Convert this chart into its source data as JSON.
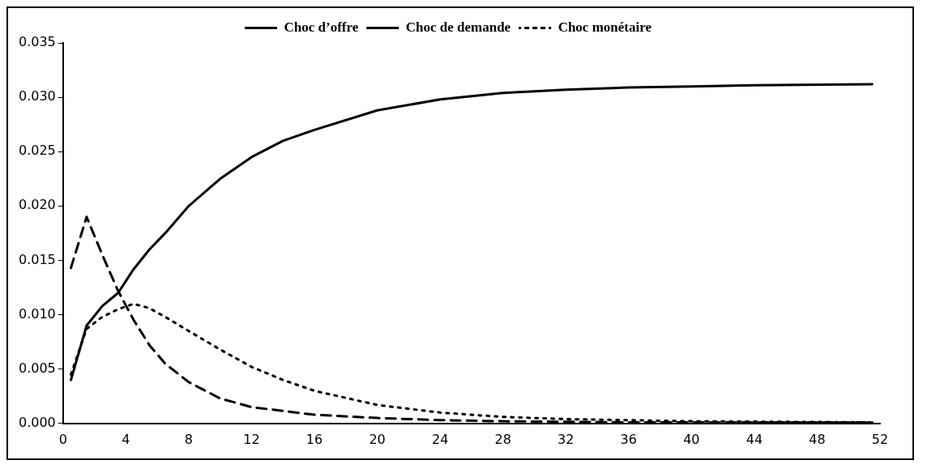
{
  "chart_data": {
    "type": "line",
    "legend": "top",
    "grid": false,
    "marker": "none",
    "xlim": [
      0,
      52
    ],
    "xticks": [
      0,
      4,
      8,
      12,
      16,
      20,
      24,
      28,
      32,
      36,
      40,
      44,
      48,
      52
    ],
    "ylim": [
      0,
      0.035
    ],
    "yticks": [
      {
        "value": 0,
        "label": "0.000"
      },
      {
        "value": 0.005,
        "label": "0.005"
      },
      {
        "value": 0.01,
        "label": "0.010"
      },
      {
        "value": 0.015,
        "label": "0.015"
      },
      {
        "value": 0.02,
        "label": "0.020"
      },
      {
        "value": 0.025,
        "label": "0.025"
      },
      {
        "value": 0.03,
        "label": "0.030"
      },
      {
        "value": 0.035,
        "label": "0.035"
      }
    ],
    "series": [
      {
        "name": "Choc d’offre",
        "color": "#000000",
        "line_style": "solid",
        "x": [
          0.5,
          1.5,
          2.5,
          3.5,
          4.5,
          5.5,
          6.5,
          8,
          10,
          12,
          14,
          16,
          20,
          24,
          28,
          32,
          36,
          40,
          44,
          51.5
        ],
        "values": [
          0.004,
          0.009,
          0.0108,
          0.012,
          0.0142,
          0.016,
          0.0175,
          0.02,
          0.0225,
          0.0245,
          0.026,
          0.027,
          0.0288,
          0.0298,
          0.0304,
          0.0307,
          0.0309,
          0.031,
          0.0311,
          0.0312
        ]
      },
      {
        "name": "Choc de demande",
        "color": "#000000",
        "line_style": "dashed",
        "x": [
          0.5,
          1.5,
          2.5,
          3.5,
          4.5,
          5.5,
          6.5,
          8,
          10,
          12,
          16,
          20,
          24,
          28,
          36,
          51.5
        ],
        "values": [
          0.0143,
          0.019,
          0.0155,
          0.0122,
          0.0095,
          0.0072,
          0.0055,
          0.0038,
          0.0023,
          0.0015,
          0.0008,
          0.0005,
          0.0003,
          0.0002,
          0.0001,
          0.0001
        ]
      },
      {
        "name": "Choc monétaire",
        "color": "#000000",
        "line_style": "dotted",
        "x": [
          0.5,
          1.5,
          2.5,
          3.5,
          4.5,
          5.5,
          6.5,
          8,
          10,
          12,
          14,
          16,
          20,
          24,
          28,
          32,
          40,
          51.5
        ],
        "values": [
          0.0045,
          0.0087,
          0.0098,
          0.0105,
          0.011,
          0.0106,
          0.0098,
          0.0085,
          0.0068,
          0.0052,
          0.004,
          0.003,
          0.0017,
          0.001,
          0.0006,
          0.0004,
          0.0002,
          0.0001
        ]
      }
    ]
  }
}
